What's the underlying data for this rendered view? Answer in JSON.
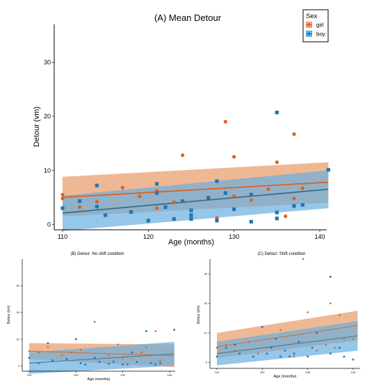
{
  "colors": {
    "girl": "#d9641c",
    "boy": "#1f77b4",
    "girl_band": "#e9a070",
    "boy_band": "#6aaee0",
    "overlap_band": "#9c8a78"
  },
  "chart_data": [
    {
      "id": "A",
      "type": "scatter",
      "title": "(A) Mean Detour",
      "xlabel": "Age (months)",
      "ylabel": "Detour (vm)",
      "xlim": [
        108,
        142
      ],
      "ylim": [
        -1,
        37
      ],
      "xticks": [
        110,
        120,
        130,
        140
      ],
      "yticks": [
        0,
        10,
        20,
        30
      ],
      "legend": {
        "title": "Sex",
        "position": "top-right",
        "entries": [
          "girl",
          "boy"
        ]
      },
      "series": [
        {
          "name": "girl",
          "points": [
            [
              110,
              5.5
            ],
            [
              110,
              4.8
            ],
            [
              112,
              3.2
            ],
            [
              114,
              4.2
            ],
            [
              117,
              6.8
            ],
            [
              119,
              5.2
            ],
            [
              121,
              6.2
            ],
            [
              121,
              3
            ],
            [
              123,
              4.1
            ],
            [
              124,
              12.8
            ],
            [
              127,
              5
            ],
            [
              128,
              1.2
            ],
            [
              129,
              19
            ],
            [
              130,
              12.5
            ],
            [
              130,
              5.2
            ],
            [
              132,
              4.5
            ],
            [
              134,
              6.5
            ],
            [
              135,
              11.5
            ],
            [
              136,
              1.5
            ],
            [
              137,
              16.7
            ],
            [
              137,
              4.8
            ],
            [
              138,
              6.7
            ]
          ],
          "fit": {
            "x": [
              110,
              141
            ],
            "y": [
              5.0,
              7.8
            ]
          },
          "ci_lower": [
            1.5,
            4.0
          ],
          "ci_upper": [
            8.8,
            11.5
          ]
        },
        {
          "name": "boy",
          "points": [
            [
              110,
              3
            ],
            [
              112,
              4.3
            ],
            [
              114,
              7.2
            ],
            [
              114,
              3.3
            ],
            [
              115,
              1.7
            ],
            [
              118,
              2.3
            ],
            [
              120,
              0.7
            ],
            [
              121,
              7.5
            ],
            [
              121,
              5.8
            ],
            [
              122,
              3.2
            ],
            [
              123,
              1
            ],
            [
              124,
              4.3
            ],
            [
              125,
              2.6
            ],
            [
              125,
              1.7
            ],
            [
              125,
              1
            ],
            [
              127,
              4.9
            ],
            [
              128,
              8
            ],
            [
              128,
              0.7
            ],
            [
              129,
              5.8
            ],
            [
              130,
              2.8
            ],
            [
              132,
              5.5
            ],
            [
              132,
              0.5
            ],
            [
              135,
              20.7
            ],
            [
              135,
              2.2
            ],
            [
              135,
              1.1
            ],
            [
              137,
              3.4
            ],
            [
              138,
              3.6
            ],
            [
              141,
              10.1
            ]
          ],
          "fit": {
            "x": [
              110,
              141
            ],
            "y": [
              2.1,
              6.5
            ]
          },
          "ci_lower": [
            -1.2,
            3.0
          ],
          "ci_upper": [
            5.3,
            10.0
          ]
        }
      ]
    },
    {
      "id": "B",
      "type": "scatter",
      "title": "(B) Detour: No shift condition",
      "xlabel": "Age (months)",
      "ylabel": "Detour (vm)",
      "xlim": [
        108,
        142
      ],
      "ylim": [
        -2,
        40
      ],
      "xticks": [
        110,
        120,
        130,
        140
      ],
      "xtick_labels": [
        "110",
        "120",
        "130",
        "140"
      ],
      "yticks": [
        0,
        10,
        20,
        30
      ],
      "series": [
        {
          "name": "girl",
          "points": [
            [
              110,
              5.5
            ],
            [
              112,
              5
            ],
            [
              114,
              7
            ],
            [
              117,
              4
            ],
            [
              119,
              5
            ],
            [
              121,
              6
            ],
            [
              124,
              16.5
            ],
            [
              127,
              4
            ],
            [
              129,
              8
            ],
            [
              130,
              3
            ],
            [
              134,
              5
            ],
            [
              135,
              7
            ],
            [
              137,
              13
            ],
            [
              138,
              2
            ]
          ],
          "fit": {
            "x": [
              110,
              141
            ],
            "y": [
              5.5,
              3.8
            ]
          },
          "ci_lower": [
            2.5,
            -0.5
          ],
          "ci_upper": [
            8.5,
            8.0
          ]
        },
        {
          "name": "boy",
          "points": [
            [
              110,
              3
            ],
            [
              112,
              1
            ],
            [
              114,
              8.5
            ],
            [
              115,
              2
            ],
            [
              118,
              2.5
            ],
            [
              120,
              10
            ],
            [
              121,
              1
            ],
            [
              122,
              0.5
            ],
            [
              124,
              3
            ],
            [
              125,
              1.5
            ],
            [
              127,
              0.8
            ],
            [
              128,
              1.5
            ],
            [
              130,
              0.5
            ],
            [
              131,
              0.5
            ],
            [
              132,
              5
            ],
            [
              133,
              1.5
            ],
            [
              135,
              13
            ],
            [
              136,
              1
            ],
            [
              137,
              0.5
            ],
            [
              138,
              1
            ],
            [
              141,
              13.5
            ]
          ],
          "fit": {
            "x": [
              110,
              141
            ],
            "y": [
              1.0,
              4.5
            ]
          },
          "ci_lower": [
            -3.0,
            0.0
          ],
          "ci_upper": [
            5.0,
            9.0
          ]
        }
      ]
    },
    {
      "id": "C",
      "type": "scatter",
      "title": "(C) Detour: Shift condition",
      "xlabel": "Age (months)",
      "ylabel": "Detour (vm)",
      "xlim": [
        108,
        142
      ],
      "ylim": [
        -2,
        35
      ],
      "xticks": [
        110,
        120,
        130,
        140
      ],
      "xtick_labels": [
        "110",
        "120",
        "130",
        "140"
      ],
      "yticks": [
        0,
        10,
        20,
        30
      ],
      "series": [
        {
          "name": "girl",
          "points": [
            [
              110,
              5
            ],
            [
              112,
              6
            ],
            [
              114,
              4
            ],
            [
              117,
              7
            ],
            [
              119,
              3
            ],
            [
              121,
              5
            ],
            [
              124,
              11
            ],
            [
              127,
              2
            ],
            [
              129,
              35
            ],
            [
              130,
              17
            ],
            [
              132,
              4
            ],
            [
              134,
              6
            ],
            [
              135,
              20
            ],
            [
              136,
              5
            ],
            [
              137,
              16
            ],
            [
              138,
              8
            ],
            [
              140,
              8
            ]
          ],
          "fit": {
            "x": [
              110,
              141
            ],
            "y": [
              5.3,
              12.5
            ]
          },
          "ci_lower": [
            1.5,
            7.5
          ],
          "ci_upper": [
            10.0,
            17.5
          ]
        },
        {
          "name": "boy",
          "points": [
            [
              110,
              2
            ],
            [
              112,
              5
            ],
            [
              114,
              6
            ],
            [
              115,
              3
            ],
            [
              118,
              2
            ],
            [
              120,
              12
            ],
            [
              121,
              3
            ],
            [
              122,
              5
            ],
            [
              123,
              8
            ],
            [
              124,
              2
            ],
            [
              125,
              4
            ],
            [
              126,
              2
            ],
            [
              127,
              3
            ],
            [
              128,
              7
            ],
            [
              130,
              2
            ],
            [
              131,
              5
            ],
            [
              132,
              10
            ],
            [
              135,
              29
            ],
            [
              135,
              3
            ],
            [
              137,
              5
            ],
            [
              138,
              2
            ],
            [
              140,
              1
            ]
          ],
          "fit": {
            "x": [
              110,
              141
            ],
            "y": [
              3.0,
              9.0
            ]
          },
          "ci_lower": [
            -1.0,
            4.0
          ],
          "ci_upper": [
            7.0,
            14.0
          ]
        }
      ]
    }
  ]
}
